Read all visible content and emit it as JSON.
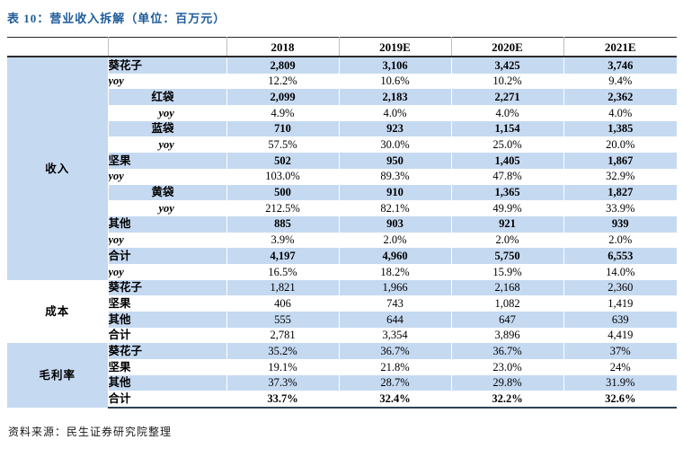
{
  "title": "表 10：营业收入拆解（单位：百万元）",
  "source": "资料来源：民生证券研究院整理",
  "colors": {
    "row_highlight": "#C5D9F1",
    "title_blue": "#1E5C9A",
    "rule_dark": "#2b2b2b"
  },
  "table": {
    "columns": [
      "2018",
      "2019E",
      "2020E",
      "2021E"
    ],
    "groups": [
      {
        "name": "收入",
        "group_bg": "blue",
        "rows": [
          {
            "label": "葵花子",
            "style": "item",
            "values": [
              "2,809",
              "3,106",
              "3,425",
              "3,746"
            ]
          },
          {
            "label": "yoy",
            "style": "yoy",
            "values": [
              "12.2%",
              "10.6%",
              "10.2%",
              "9.4%"
            ]
          },
          {
            "label": "红袋",
            "style": "subitem",
            "values": [
              "2,099",
              "2,183",
              "2,271",
              "2,362"
            ]
          },
          {
            "label": "yoy",
            "style": "subyoy",
            "values": [
              "4.9%",
              "4.0%",
              "4.0%",
              "4.0%"
            ]
          },
          {
            "label": "蓝袋",
            "style": "subitem",
            "values": [
              "710",
              "923",
              "1,154",
              "1,385"
            ]
          },
          {
            "label": "yoy",
            "style": "subyoy",
            "values": [
              "57.5%",
              "30.0%",
              "25.0%",
              "20.0%"
            ]
          },
          {
            "label": "坚果",
            "style": "item",
            "values": [
              "502",
              "950",
              "1,405",
              "1,867"
            ]
          },
          {
            "label": "yoy",
            "style": "yoy",
            "values": [
              "103.0%",
              "89.3%",
              "47.8%",
              "32.9%"
            ]
          },
          {
            "label": "黄袋",
            "style": "subitem",
            "values": [
              "500",
              "910",
              "1,365",
              "1,827"
            ]
          },
          {
            "label": "yoy",
            "style": "subyoy",
            "values": [
              "212.5%",
              "82.1%",
              "49.9%",
              "33.9%"
            ]
          },
          {
            "label": "其他",
            "style": "item",
            "values": [
              "885",
              "903",
              "921",
              "939"
            ]
          },
          {
            "label": "yoy",
            "style": "yoy",
            "values": [
              "3.9%",
              "2.0%",
              "2.0%",
              "2.0%"
            ]
          },
          {
            "label": "合计",
            "style": "item",
            "values": [
              "4,197",
              "4,960",
              "5,750",
              "6,553"
            ]
          },
          {
            "label": "yoy",
            "style": "yoy",
            "values": [
              "16.5%",
              "18.2%",
              "15.9%",
              "14.0%"
            ]
          }
        ]
      },
      {
        "name": "成本",
        "group_bg": "white",
        "rows": [
          {
            "label": "葵花子",
            "style": "plain",
            "values": [
              "1,821",
              "1,966",
              "2,168",
              "2,360"
            ]
          },
          {
            "label": "坚果",
            "style": "plain",
            "values": [
              "406",
              "743",
              "1,082",
              "1,419"
            ]
          },
          {
            "label": "其他",
            "style": "plain",
            "values": [
              "555",
              "644",
              "647",
              "639"
            ]
          },
          {
            "label": "合计",
            "style": "plain",
            "values": [
              "2,781",
              "3,354",
              "3,896",
              "4,419"
            ]
          }
        ]
      },
      {
        "name": "毛利率",
        "group_bg": "blue",
        "rows": [
          {
            "label": "葵花子",
            "style": "plain",
            "values": [
              "35.2%",
              "36.7%",
              "36.7%",
              "37%"
            ]
          },
          {
            "label": "坚果",
            "style": "plain",
            "values": [
              "19.1%",
              "21.8%",
              "23.0%",
              "24%"
            ]
          },
          {
            "label": "其他",
            "style": "plain",
            "values": [
              "37.3%",
              "28.7%",
              "29.8%",
              "31.9%"
            ]
          },
          {
            "label": "合计",
            "style": "total",
            "values": [
              "33.7%",
              "32.4%",
              "32.2%",
              "32.6%"
            ]
          }
        ]
      }
    ]
  }
}
